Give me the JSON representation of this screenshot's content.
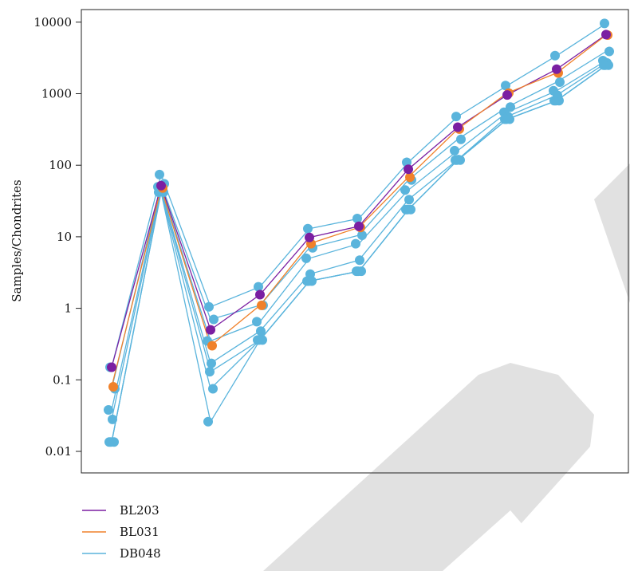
{
  "chart_data": {
    "type": "line",
    "title": "",
    "xlabel": "",
    "ylabel": "Samples/Chondrites",
    "yscale": "log",
    "ylim": [
      0.005,
      15000
    ],
    "yticks": [
      0.01,
      0.1,
      1,
      10,
      100,
      1000,
      10000
    ],
    "ytick_labels": [
      "0.01",
      "0.1",
      "1",
      "10",
      "100",
      "1000",
      "10000"
    ],
    "grid": false,
    "legend_position": "below-left",
    "colors": {
      "BL203": "#7b1fa2",
      "BL031": "#f0812a",
      "DB048": "#5ab4dc",
      "watermark": "#d9d9d9"
    },
    "x": [
      1,
      2,
      3,
      4,
      5,
      6,
      7,
      8,
      9,
      10,
      11
    ],
    "series": [
      {
        "name": "BL203",
        "values": [
          0.15,
          52,
          0.5,
          1.55,
          9.8,
          14,
          88,
          340,
          960,
          2200,
          6700
        ]
      },
      {
        "name": "BL031",
        "values": [
          0.08,
          48,
          0.3,
          1.1,
          8,
          13.5,
          68,
          320,
          1020,
          1950,
          6600
        ]
      },
      {
        "name": "DB048",
        "values": [
          0.15,
          74,
          1.05,
          2,
          13,
          18,
          110,
          480,
          1300,
          3400,
          9600
        ]
      },
      {
        "name": "",
        "values": [
          0.075,
          55,
          0.7,
          1.1,
          7,
          10.5,
          62,
          230,
          650,
          1450,
          3900
        ]
      },
      {
        "name": "",
        "values": [
          0.038,
          50,
          0.35,
          0.65,
          5,
          8,
          45,
          160,
          550,
          1100,
          2900
        ]
      },
      {
        "name": "",
        "values": [
          0.028,
          46,
          0.17,
          0.48,
          3,
          4.7,
          33,
          120,
          480,
          950,
          2700
        ]
      },
      {
        "name": "",
        "values": [
          0.0135,
          44,
          0.13,
          0.36,
          2.4,
          3.3,
          24,
          118,
          440,
          800,
          2500
        ]
      },
      {
        "name": "",
        "values": [
          0.0135,
          42,
          0.075,
          0.36,
          2.4,
          3.3,
          24,
          118,
          440,
          800,
          2500
        ]
      },
      {
        "name": "",
        "values": [
          0.0135,
          42,
          0.026,
          0.36,
          2.4,
          3.3,
          24,
          118,
          440,
          800,
          2500
        ]
      }
    ]
  },
  "legend": [
    {
      "label": "BL203",
      "color": "#7b1fa2"
    },
    {
      "label": "BL031",
      "color": "#f0812a"
    },
    {
      "label": "DB048",
      "color": "#5ab4dc"
    }
  ]
}
